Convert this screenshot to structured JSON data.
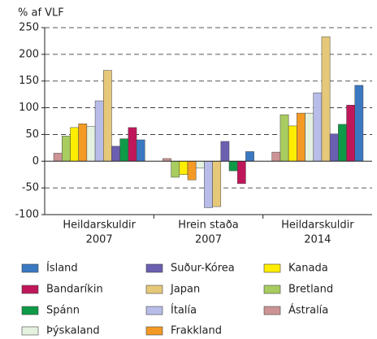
{
  "chart_data": {
    "type": "bar",
    "y_label": "% af VLF",
    "categories": [
      [
        "Heildarskuldir",
        "2007"
      ],
      [
        "Hrein staða",
        "2007"
      ],
      [
        "Heildarskuldir",
        "2014"
      ]
    ],
    "series": [
      {
        "name": "Ísland",
        "color": "#3a78c2",
        "values": [
          40,
          18,
          142
        ]
      },
      {
        "name": "Suður-Kórea",
        "color": "#6a5fb0",
        "values": [
          28,
          37,
          51
        ]
      },
      {
        "name": "Kanada",
        "color": "#ffee00",
        "values": [
          63,
          -25,
          66
        ]
      },
      {
        "name": "Bandaríkin",
        "color": "#c0175a",
        "values": [
          63,
          -42,
          105
        ]
      },
      {
        "name": "Japan",
        "color": "#e6c87a",
        "values": [
          170,
          -85,
          233
        ]
      },
      {
        "name": "Bretland",
        "color": "#a8cc60",
        "values": [
          47,
          -30,
          87
        ]
      },
      {
        "name": "Spánn",
        "color": "#0f9a48",
        "values": [
          42,
          -18,
          69
        ]
      },
      {
        "name": "Ítalía",
        "color": "#b8bce8",
        "values": [
          113,
          -87,
          128
        ]
      },
      {
        "name": "Ástralía",
        "color": "#cc9494",
        "values": [
          15,
          5,
          17
        ]
      },
      {
        "name": "Þýskaland",
        "color": "#e6f2e0",
        "values": [
          65,
          -13,
          90
        ]
      },
      {
        "name": "Frakkland",
        "color": "#f39a24",
        "values": [
          70,
          -35,
          90
        ]
      }
    ],
    "ylim": [
      -100,
      250
    ],
    "yticks": [
      -100,
      -50,
      0,
      50,
      100,
      150,
      200,
      250
    ],
    "grid": true
  }
}
